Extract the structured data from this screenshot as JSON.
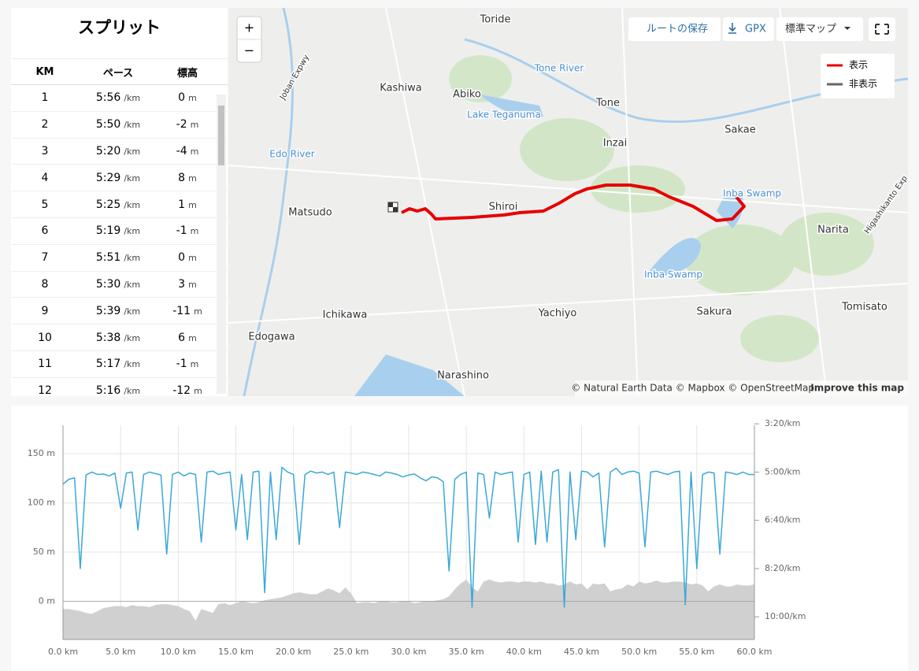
{
  "splits": {
    "title": "スプリット",
    "columns": [
      "KM",
      "ペース",
      "標高"
    ],
    "pace_unit": "/km",
    "elev_unit": "m",
    "rows": [
      [
        1,
        "5:56",
        0
      ],
      [
        2,
        "5:50",
        -2
      ],
      [
        3,
        "5:20",
        -4
      ],
      [
        4,
        "5:29",
        8
      ],
      [
        5,
        "5:25",
        1
      ],
      [
        6,
        "5:19",
        -1
      ],
      [
        7,
        "5:51",
        0
      ],
      [
        8,
        "5:30",
        3
      ],
      [
        9,
        "5:39",
        -11
      ],
      [
        10,
        "5:38",
        6
      ],
      [
        11,
        "5:17",
        -1
      ],
      [
        12,
        "5:16",
        -12
      ]
    ]
  },
  "map": {
    "zoom_in": "+",
    "zoom_out": "−",
    "save_route": "ルートの保存",
    "gpx": "GPX",
    "map_style": "標準マップ",
    "legend": [
      "表示",
      "非表示"
    ],
    "attribution": "© Natural Earth Data © Mapbox © OpenStreetMap",
    "improve": "Improve this map",
    "labels": [
      "Toride",
      "Tone River",
      "Kashiwa",
      "Abiko",
      "Lake Teganuma",
      "Tone",
      "Sakae",
      "Inzai",
      "Edo River",
      "Inba Swamp",
      "Shiroi",
      "Matsudo",
      "Narita",
      "Inba Swamp",
      "Ichikawa",
      "Yachiyo",
      "Sakura",
      "Tomisato",
      "Edogawa",
      "Narashino",
      "Joban Expwy",
      "Higashikanto Exp"
    ]
  },
  "chart_data": {
    "type": "line",
    "x": [
      0,
      0.5,
      1,
      1.5,
      2,
      2.5,
      3,
      3.5,
      4,
      4.5,
      5,
      5.5,
      6,
      6.5,
      7,
      7.5,
      8,
      8.5,
      9,
      9.5,
      10,
      10.5,
      11,
      11.5,
      12,
      12.5,
      13,
      13.5,
      14,
      14.5,
      15,
      15.5,
      16,
      16.5,
      17,
      17.5,
      18,
      18.5,
      19,
      19.5,
      20,
      20.5,
      21,
      21.5,
      22,
      22.5,
      23,
      23.5,
      24,
      24.5,
      25,
      25.5,
      26,
      26.5,
      27,
      27.5,
      28,
      28.5,
      29,
      29.5,
      30,
      30.5,
      31,
      31.5,
      32,
      32.5,
      33,
      33.5,
      34,
      34.5,
      35,
      35.5,
      36,
      36.5,
      37,
      37.5,
      38,
      38.5,
      39,
      39.5,
      40,
      40.5,
      41,
      41.5,
      42,
      42.5,
      43,
      43.5,
      44,
      44.5,
      45,
      45.5,
      46,
      46.5,
      47,
      47.5,
      48,
      48.5,
      49,
      49.5,
      50,
      50.5,
      51,
      51.5,
      52,
      52.5,
      53,
      53.5,
      54,
      54.5,
      55,
      55.5,
      56,
      56.5,
      57,
      57.5,
      58,
      58.5,
      59,
      59.5,
      60
    ],
    "series": [
      {
        "kind": "area",
        "color": "#d0d0d0",
        "values": [
          -8,
          -8,
          -9,
          -10,
          -12,
          -13,
          -10,
          -7,
          -6,
          -5,
          -5,
          -6,
          -4,
          -5,
          -5,
          -6,
          -4,
          -3,
          -3,
          -4,
          -5,
          -8,
          -10,
          -20,
          -8,
          -10,
          -12,
          -3,
          -2,
          -4,
          -2,
          0,
          -1,
          -2,
          -1,
          1,
          2,
          3,
          4,
          6,
          8,
          9,
          8,
          7,
          7,
          10,
          13,
          11,
          8,
          14,
          8,
          -2,
          -1,
          -1,
          -2,
          0,
          0,
          -1,
          -1,
          0,
          0,
          -2,
          -1,
          0,
          0,
          1,
          2,
          5,
          12,
          18,
          22,
          14,
          10,
          20,
          22,
          20,
          19,
          20,
          20,
          19,
          20,
          20,
          19,
          20,
          18,
          18,
          16,
          17,
          20,
          17,
          18,
          12,
          18,
          17,
          18,
          10,
          12,
          13,
          17,
          15,
          20,
          18,
          19,
          21,
          19,
          19,
          20,
          20,
          19,
          17,
          18,
          16,
          10,
          15,
          17,
          15,
          15,
          17,
          16,
          16,
          17
        ]
      },
      {
        "kind": "line",
        "color": "#3aa8d8",
        "axis": "y2",
        "values": [
          325,
          315,
          312,
          500,
          306,
          300,
          305,
          304,
          308,
          302,
          375,
          302,
          300,
          420,
          305,
          300,
          303,
          306,
          470,
          305,
          300,
          308,
          302,
          305,
          445,
          300,
          298,
          305,
          302,
          300,
          420,
          305,
          440,
          300,
          298,
          550,
          300,
          440,
          290,
          300,
          305,
          450,
          305,
          298,
          302,
          300,
          305,
          300,
          415,
          300,
          302,
          305,
          300,
          302,
          305,
          308,
          300,
          302,
          305,
          310,
          306,
          304,
          312,
          318,
          310,
          312,
          320,
          505,
          315,
          305,
          300,
          580,
          302,
          305,
          395,
          300,
          305,
          302,
          300,
          445,
          305,
          300,
          450,
          298,
          445,
          300,
          295,
          580,
          300,
          440,
          298,
          300,
          310,
          302,
          455,
          300,
          292,
          305,
          300,
          298,
          302,
          455,
          300,
          298,
          302,
          305,
          300,
          298,
          575,
          300,
          500,
          305,
          300,
          302,
          470,
          300,
          302,
          305,
          300,
          305,
          305
        ]
      }
    ],
    "xlim": [
      0,
      60
    ],
    "ylim": [
      -39,
      179
    ],
    "y2lim": [
      203,
      647
    ],
    "y2_inverted": true,
    "grid": true,
    "xticks": [
      {
        "value": 0,
        "label": "0.0 km"
      },
      {
        "value": 5,
        "label": "5.0 km"
      },
      {
        "value": 10,
        "label": "10.0 km"
      },
      {
        "value": 15,
        "label": "15.0 km"
      },
      {
        "value": 20,
        "label": "20.0 km"
      },
      {
        "value": 25,
        "label": "25.0 km"
      },
      {
        "value": 30,
        "label": "30.0 km"
      },
      {
        "value": 35,
        "label": "35.0 km"
      },
      {
        "value": 40,
        "label": "40.0 km"
      },
      {
        "value": 45,
        "label": "45.0 km"
      },
      {
        "value": 50,
        "label": "50.0 km"
      },
      {
        "value": 55,
        "label": "55.0 km"
      },
      {
        "value": 60,
        "label": "60.0 km"
      }
    ],
    "yticks": [
      {
        "value": 0,
        "label": "0 m"
      },
      {
        "value": 50,
        "label": "50 m"
      },
      {
        "value": 100,
        "label": "100 m"
      },
      {
        "value": 150,
        "label": "150 m"
      }
    ],
    "y2ticks": [
      {
        "value": 200,
        "label": "3:20/km"
      },
      {
        "value": 300,
        "label": "5:00/km"
      },
      {
        "value": 400,
        "label": "6:40/km"
      },
      {
        "value": 500,
        "label": "8:20/km"
      },
      {
        "value": 600,
        "label": "10:00/km"
      }
    ]
  }
}
